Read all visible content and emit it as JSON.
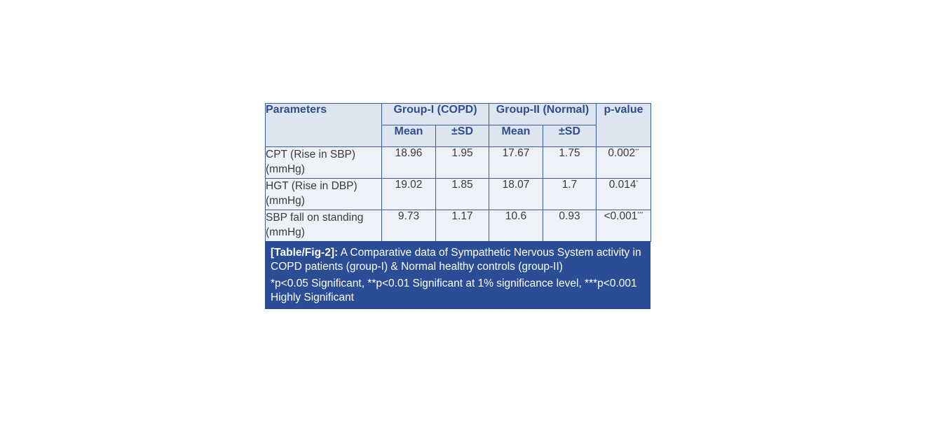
{
  "table": {
    "header": {
      "parameters": "Parameters",
      "group1": "Group-I (COPD)",
      "group2": "Group-II (Normal)",
      "mean": "Mean",
      "sd": "±SD",
      "pvalue": "p-value"
    },
    "rows": [
      {
        "parameter_line1": "CPT (Rise in SBP)",
        "parameter_line2": "(mmHg)",
        "g1_mean": "18.96",
        "g1_sd": "1.95",
        "g2_mean": "17.67",
        "g2_sd": "1.75",
        "p": "0.002",
        "sig": "**"
      },
      {
        "parameter_line1": "HGT (Rise in DBP)",
        "parameter_line2": "(mmHg)",
        "g1_mean": "19.02",
        "g1_sd": "1.85",
        "g2_mean": "18.07",
        "g2_sd": "1.7",
        "p": "0.014",
        "sig": "*"
      },
      {
        "parameter_line1": "SBP fall on standing",
        "parameter_line2": "(mmHg)",
        "g1_mean": "9.73",
        "g1_sd": "1.17",
        "g2_mean": "10.6",
        "g2_sd": "0.93",
        "p": "<0.001",
        "sig": "***"
      }
    ]
  },
  "caption": {
    "label": "[Table/Fig-2]:",
    "text": " A Comparative data of Sympathetic Nervous System activity in COPD patients (group-I) & Normal healthy controls (group-II)",
    "footnote": "*p<0.05 Significant, **p<0.01 Significant at 1% significance level, ***p<0.001 Highly Significant"
  },
  "colors": {
    "header_text": "#2f4d8f",
    "border": "#3b5aa0",
    "caption_bg": "#2a4d96",
    "table_bg": "#eef2f8"
  }
}
